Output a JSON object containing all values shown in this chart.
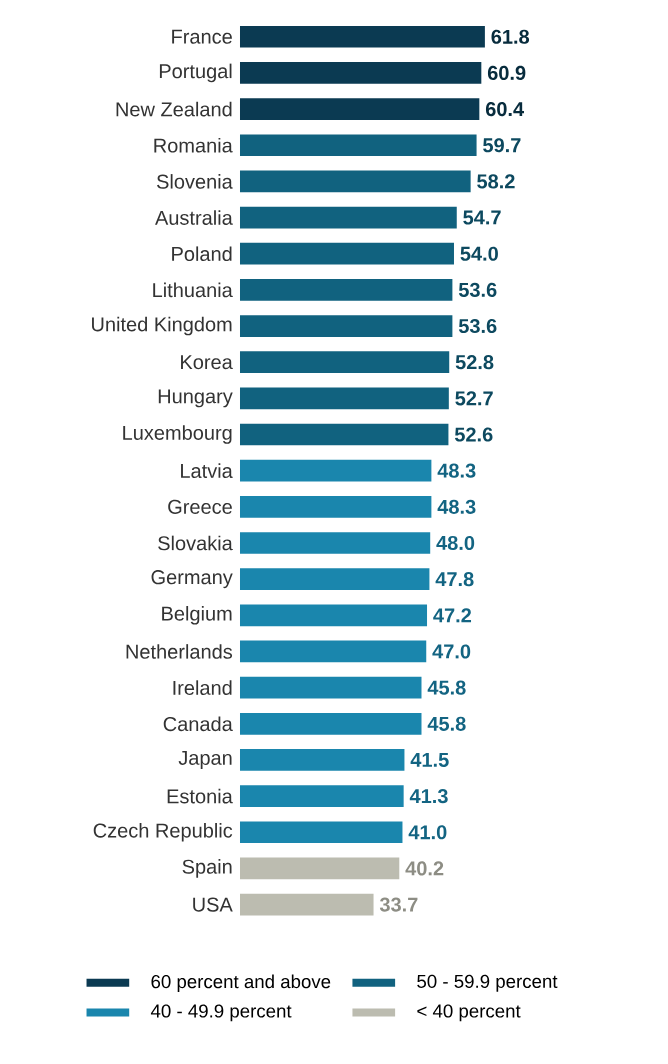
{
  "chart_data": {
    "type": "bar",
    "orientation": "horizontal",
    "stacked": true,
    "legend": "bottom",
    "categories": [
      "France",
      "Portugal",
      "New Zealand",
      "Romania",
      "Slovenia",
      "Australia",
      "Poland",
      "Lithuania",
      "United Kingdom",
      "Korea",
      "Hungary",
      "Luxembourg",
      "Latvia",
      "Greece",
      "Slovakia",
      "Germany",
      "Belgium",
      "Netherlands",
      "Ireland",
      "Canada",
      "Japan",
      "Estonia",
      "Czech Republic",
      "Spain",
      "USA"
    ],
    "series": [
      {
        "name": "60 percent and above",
        "color": "#0b3a52",
        "values": [
          61.8,
          60.9,
          60.4,
          null,
          null,
          null,
          null,
          null,
          null,
          null,
          null,
          null,
          null,
          null,
          null,
          null,
          null,
          null,
          null,
          null,
          null,
          null,
          null,
          null,
          null
        ],
        "value_labels": [
          "61.8",
          "60.9",
          "60.4",
          null,
          null,
          null,
          null,
          null,
          null,
          null,
          null,
          null,
          null,
          null,
          null,
          null,
          null,
          null,
          null,
          null,
          null,
          null,
          null,
          null,
          null
        ]
      },
      {
        "name": "50 - 59.9 percent",
        "color": "#11627f",
        "values": [
          null,
          null,
          null,
          59.7,
          58.2,
          54.7,
          54.0,
          53.6,
          53.6,
          52.8,
          52.7,
          52.6,
          null,
          null,
          null,
          null,
          null,
          null,
          null,
          null,
          null,
          null,
          null,
          null,
          null
        ],
        "value_labels": [
          null,
          null,
          null,
          "59.7",
          "58.2",
          "54.7",
          "54.0",
          "53.6",
          "53.6",
          "52.8",
          "52.7",
          "52.6",
          null,
          null,
          null,
          null,
          null,
          null,
          null,
          null,
          null,
          null,
          null,
          null,
          null
        ]
      },
      {
        "name": "40 - 49.9 percent",
        "color": "#1a86ad",
        "values": [
          null,
          null,
          null,
          null,
          null,
          null,
          null,
          null,
          null,
          null,
          null,
          null,
          48.3,
          48.3,
          48.0,
          47.8,
          47.2,
          47.0,
          45.8,
          45.8,
          41.5,
          41.3,
          41.0,
          null,
          null
        ],
        "value_labels": [
          null,
          null,
          null,
          null,
          null,
          null,
          null,
          null,
          null,
          null,
          null,
          null,
          "48.3",
          "48.3",
          "48.0",
          "47.8",
          "47.2",
          "47.0",
          "45.8",
          "45.8",
          "41.5",
          "41.3",
          "41.0",
          null,
          null
        ]
      },
      {
        "name": "< 40 percent",
        "color": "#bcbcb0",
        "values": [
          null,
          null,
          null,
          null,
          null,
          null,
          null,
          null,
          null,
          null,
          null,
          null,
          null,
          null,
          null,
          null,
          null,
          null,
          null,
          null,
          null,
          null,
          null,
          40.2,
          33.7
        ],
        "value_labels": [
          null,
          null,
          null,
          null,
          null,
          null,
          null,
          null,
          null,
          null,
          null,
          null,
          null,
          null,
          null,
          null,
          null,
          null,
          null,
          null,
          null,
          null,
          null,
          "40.2",
          "33.7"
        ]
      }
    ]
  }
}
